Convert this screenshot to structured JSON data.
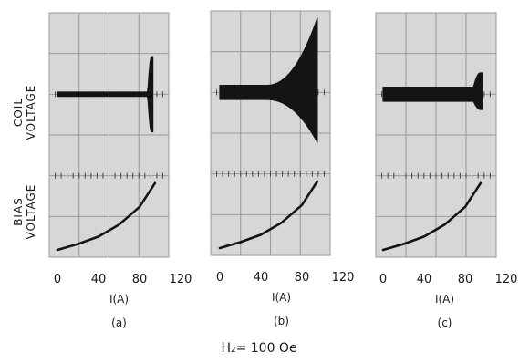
{
  "labels": {
    "coil_voltage": [
      "COIL",
      "VOLTAGE"
    ],
    "bias_voltage": [
      "BIAS",
      "VOLTAGE"
    ],
    "field": "H₂= 100 Oe"
  },
  "chart_data": [
    {
      "type": "line",
      "panel": "(a)",
      "xlabel": "I(A)",
      "xticks": [
        "0",
        "40",
        "80",
        "120"
      ],
      "xlim": [
        0,
        120
      ],
      "coil_voltage": {
        "baseline_envelope": 0.03,
        "burst_start_A": 88,
        "burst_end_A": 93,
        "burst_envelope_top": 0.9,
        "burst_envelope_bottom": 0.9
      },
      "bias_voltage": {
        "x": [
          0,
          20,
          40,
          60,
          80,
          95
        ],
        "y": [
          0.0,
          0.08,
          0.18,
          0.34,
          0.58,
          0.9
        ]
      }
    },
    {
      "type": "line",
      "panel": "(b)",
      "xlabel": "I(A)",
      "xticks": [
        "0",
        "40",
        "80",
        "120"
      ],
      "xlim": [
        0,
        120
      ],
      "coil_voltage": {
        "baseline_envelope": 0.15,
        "growth_start_A": 45,
        "growth_end_A": 95,
        "peak_envelope_top": 1.8,
        "peak_envelope_bottom": 1.2
      },
      "bias_voltage": {
        "x": [
          0,
          20,
          40,
          60,
          80,
          95
        ],
        "y": [
          0.0,
          0.08,
          0.18,
          0.34,
          0.58,
          0.9
        ]
      }
    },
    {
      "type": "line",
      "panel": "(c)",
      "xlabel": "I(A)",
      "xticks": [
        "0",
        "40",
        "80",
        "120"
      ],
      "xlim": [
        0,
        120
      ],
      "coil_voltage": {
        "baseline_envelope": 0.15,
        "burst_start_A": 88,
        "burst_end_A": 97,
        "burst_envelope_top": 0.5,
        "burst_envelope_bottom": 0.35
      },
      "bias_voltage": {
        "x": [
          0,
          20,
          40,
          60,
          80,
          95
        ],
        "y": [
          0.0,
          0.08,
          0.18,
          0.34,
          0.58,
          0.9
        ]
      }
    }
  ]
}
